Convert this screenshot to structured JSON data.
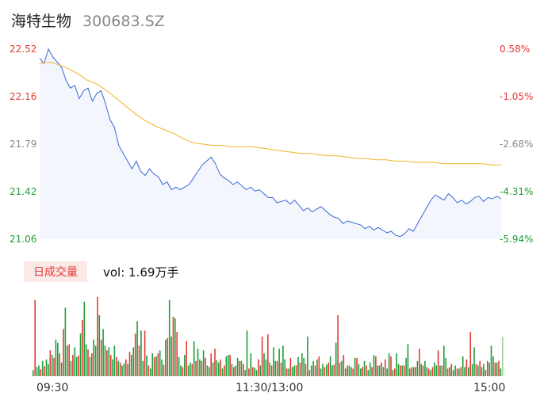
{
  "header": {
    "name": "海特生物",
    "code": "300683.SZ"
  },
  "volume_header": {
    "badge": "日成交量",
    "text": "vol: 1.69万手"
  },
  "time_axis": [
    "09:30",
    "11:30/13:00",
    "15:00"
  ],
  "colors": {
    "price_line": "#3a66d6",
    "avg_line": "#f0b429",
    "area_fill": "#f3f6fd",
    "up": "#e53935",
    "down": "#1e9e3a",
    "flat_axis_label": "#888888"
  },
  "chart_data": [
    {
      "type": "line",
      "y_left_ticks": [
        "22.52",
        "22.16",
        "21.79",
        "21.42",
        "21.06"
      ],
      "y_right_ticks": [
        "0.58%",
        "-1.05%",
        "-2.68%",
        "-4.31%",
        "-5.94%"
      ],
      "ylim": [
        21.06,
        22.52
      ],
      "x_range": [
        0,
        240
      ],
      "series": [
        {
          "values": [
            22.45,
            22.41,
            22.52,
            22.46,
            22.42,
            22.38,
            22.28,
            22.22,
            22.24,
            22.14,
            22.2,
            22.22,
            22.12,
            22.18,
            22.2,
            22.1,
            21.98,
            21.92,
            21.78,
            21.72,
            21.66,
            21.6,
            21.66,
            21.58,
            21.55,
            21.6,
            21.56,
            21.54,
            21.48,
            21.5,
            21.44,
            21.46,
            21.44,
            21.46,
            21.48,
            21.53,
            21.58,
            21.63,
            21.66,
            21.69,
            21.64,
            21.56,
            21.53,
            21.51,
            21.48,
            21.5,
            21.47,
            21.44,
            21.46,
            21.43,
            21.44,
            21.41,
            21.38,
            21.38,
            21.34,
            21.35,
            21.36,
            21.33,
            21.36,
            21.32,
            21.28,
            21.3,
            21.27,
            21.29,
            21.31,
            21.28,
            21.25,
            21.23,
            21.22,
            21.18,
            21.2,
            21.19,
            21.18,
            21.17,
            21.14,
            21.16,
            21.13,
            21.15,
            21.13,
            21.11,
            21.12,
            21.09,
            21.08,
            21.1,
            21.14,
            21.12,
            21.18,
            21.24,
            21.3,
            21.36,
            21.4,
            21.38,
            21.36,
            21.41,
            21.38,
            21.34,
            21.36,
            21.33,
            21.35,
            21.38,
            21.39,
            21.35,
            21.38,
            21.37,
            21.39,
            21.37
          ],
          "note": "price"
        },
        {
          "values": [
            22.41,
            22.42,
            22.4,
            22.37,
            22.33,
            22.28,
            22.25,
            22.2,
            22.14,
            22.08,
            22.02,
            21.97,
            21.93,
            21.9,
            21.87,
            21.83,
            21.8,
            21.79,
            21.78,
            21.78,
            21.77,
            21.77,
            21.77,
            21.76,
            21.75,
            21.74,
            21.73,
            21.72,
            21.72,
            21.71,
            21.7,
            21.7,
            21.69,
            21.68,
            21.68,
            21.67,
            21.67,
            21.66,
            21.66,
            21.65,
            21.65,
            21.65,
            21.64,
            21.64,
            21.64,
            21.64,
            21.64,
            21.63,
            21.63
          ],
          "note": "average"
        }
      ]
    },
    {
      "type": "bar",
      "values": [
        8,
        100,
        12,
        14,
        9,
        20,
        13,
        22,
        16,
        34,
        28,
        24,
        48,
        44,
        30,
        18,
        62,
        90,
        40,
        42,
        20,
        28,
        38,
        25,
        27,
        56,
        74,
        98,
        42,
        35,
        25,
        30,
        48,
        40,
        104,
        80,
        48,
        62,
        40,
        34,
        38,
        28,
        22,
        40,
        25,
        20,
        18,
        14,
        17,
        22,
        16,
        32,
        28,
        38,
        56,
        72,
        40,
        60,
        20,
        60,
        27,
        14,
        10,
        30,
        25,
        26,
        30,
        34,
        22,
        15,
        48,
        50,
        100,
        52,
        78,
        76,
        58,
        25,
        14,
        12,
        28,
        46,
        14,
        18,
        16,
        46,
        20,
        36,
        22,
        20,
        34,
        24,
        14,
        12,
        30,
        18,
        36,
        21,
        18,
        22,
        10,
        14,
        26,
        28,
        28,
        16,
        12,
        14,
        24,
        20,
        20,
        16,
        8,
        60,
        10,
        30,
        12,
        11,
        8,
        22,
        14,
        52,
        30,
        22,
        55,
        18,
        14,
        38,
        20,
        20,
        36,
        18,
        40,
        22,
        10,
        10,
        24,
        12,
        14,
        14,
        25,
        18,
        30,
        24,
        16,
        52,
        8,
        14,
        20,
        14,
        22,
        26,
        10,
        16,
        12,
        15,
        18,
        26,
        14,
        15,
        44,
        80,
        18,
        20,
        28,
        10,
        14,
        14,
        12,
        10,
        24,
        24,
        16,
        10,
        12,
        20,
        14,
        8,
        18,
        12,
        28,
        26,
        14,
        14,
        18,
        12,
        22,
        10,
        30,
        26,
        8,
        10,
        30,
        16,
        14,
        14,
        14,
        24,
        42,
        10,
        12,
        12,
        12,
        20,
        36,
        16,
        14,
        20,
        12,
        10,
        8,
        12,
        18,
        14,
        34,
        14,
        14,
        40,
        24,
        10,
        12,
        16,
        8,
        14,
        10,
        10,
        12,
        26,
        12,
        22,
        12,
        58,
        16,
        38,
        16,
        14,
        20,
        12,
        16,
        8,
        20,
        18,
        40,
        26,
        18,
        18,
        20,
        10,
        52
      ],
      "value_unit": "relative"
    }
  ]
}
